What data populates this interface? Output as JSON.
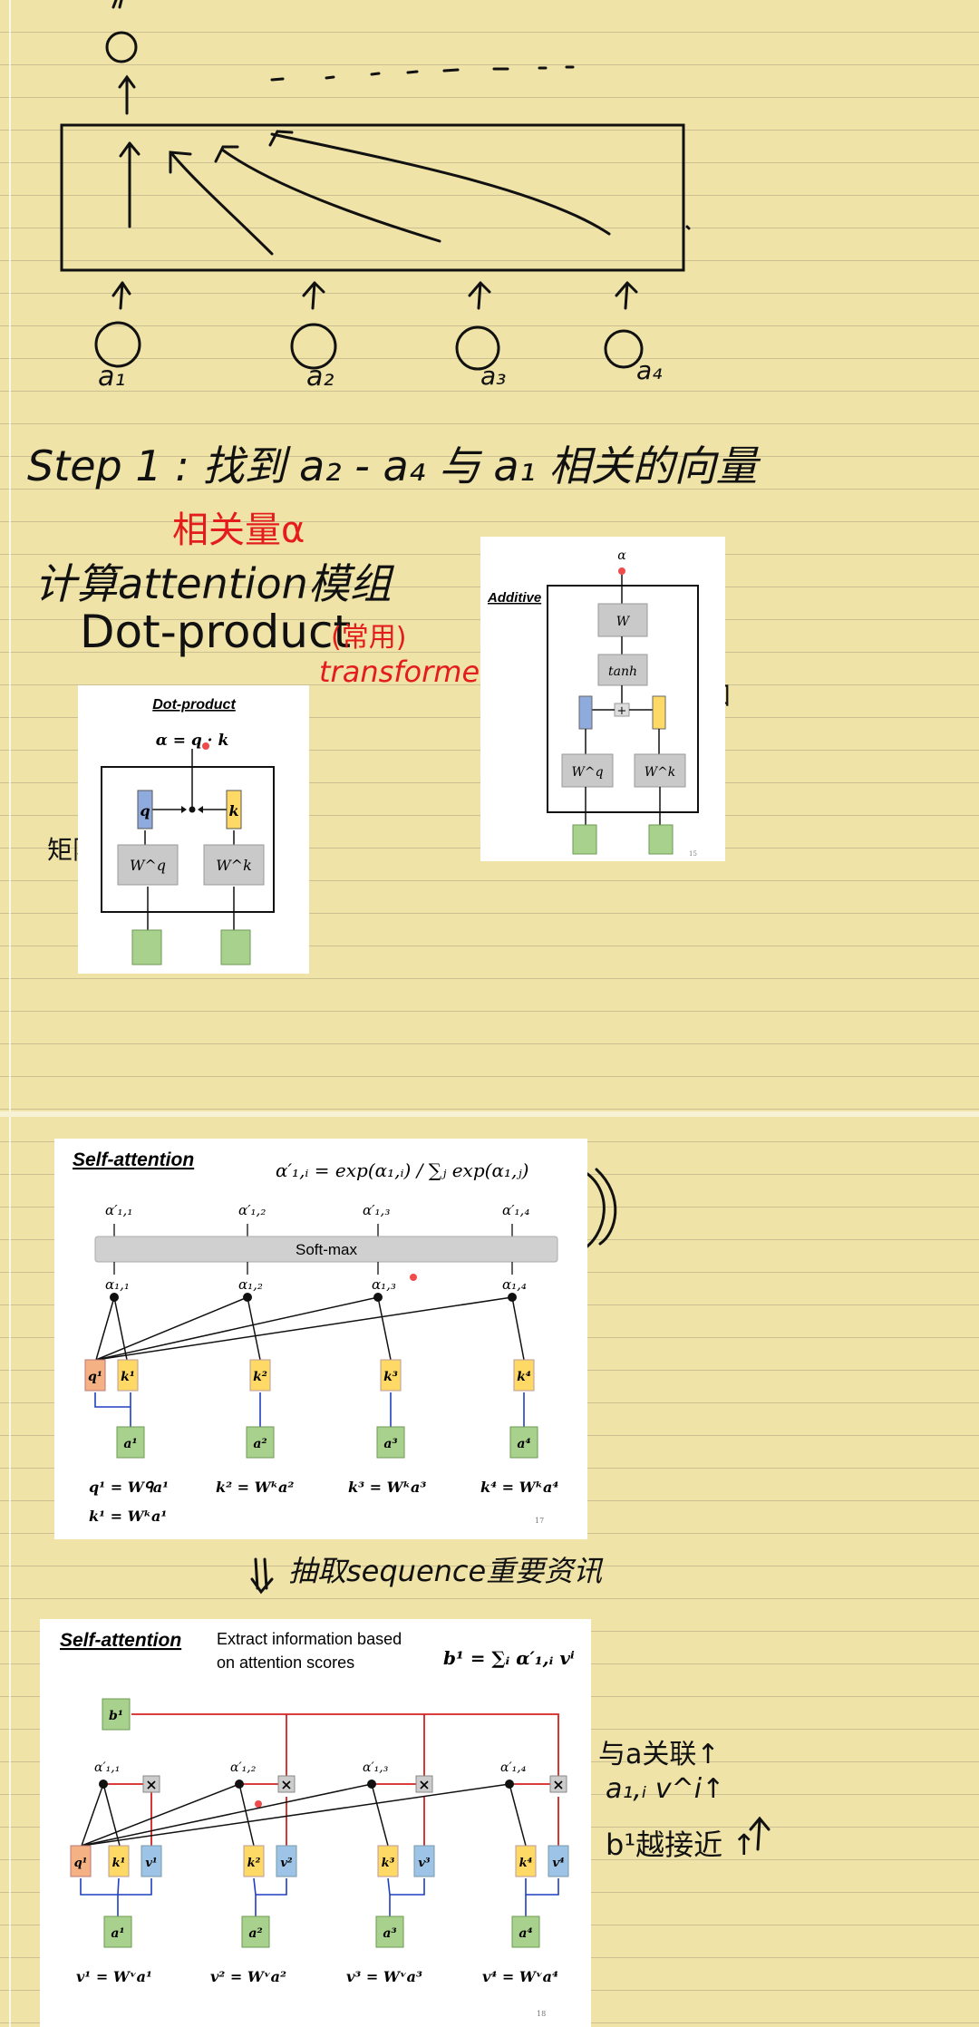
{
  "notes": {
    "step1": "Step 1 : 找到 a₂ - a₄ 与 a₁ 相关的向量",
    "relevance": "相关量α",
    "compute_module": "计算attention模组",
    "dot_product": "Dot-product",
    "common": "(常用)",
    "transformer": "transformer",
    "matrix": "矩阵",
    "add": "相加",
    "extract": "抽取sequence重要资讯",
    "right_note_1": "与a关联↑",
    "right_note_2": "a₁,ᵢ v^i↑",
    "right_note_3": "b¹越接近 ↑",
    "inputs": [
      "a₁",
      "a₂",
      "a₃",
      "a₄"
    ]
  },
  "dot_product_card": {
    "title": "Dot-product",
    "formula": "α = q · k",
    "q": "q",
    "k": "k",
    "wq": "W^q",
    "wk": "W^k"
  },
  "additive_card": {
    "title": "Additive",
    "alpha": "α",
    "w": "W",
    "tanh": "tanh",
    "plus": "+",
    "wq": "W^q",
    "wk": "W^k",
    "page_num": "15"
  },
  "softmax_slide": {
    "title": "Self-attention",
    "formula": "α′₁,ᵢ = exp(α₁,ᵢ) / ∑ⱼ exp(α₁,ⱼ)",
    "softmax_label": "Soft-max",
    "alpha_prime": [
      "α′₁,₁",
      "α′₁,₂",
      "α′₁,₃",
      "α′₁,₄"
    ],
    "alpha": [
      "α₁,₁",
      "α₁,₂",
      "α₁,₃",
      "α₁,₄"
    ],
    "q1": "q¹",
    "keys": [
      "k¹",
      "k²",
      "k³",
      "k⁴"
    ],
    "inputs": [
      "a¹",
      "a²",
      "a³",
      "a⁴"
    ],
    "equations": [
      "q¹ = Wᑫa¹",
      "k² = Wᵏa²",
      "k³ = Wᵏa³",
      "k⁴ = Wᵏa⁴"
    ],
    "equation_k1": "k¹ = Wᵏa¹",
    "page_num": "17"
  },
  "extract_slide": {
    "title": "Self-attention",
    "subtitle_line1": "Extract information based",
    "subtitle_line2": "on attention scores",
    "formula": "b¹ = ∑ᵢ α′₁,ᵢ vⁱ",
    "b1": "b¹",
    "alpha_prime": [
      "α′₁,₁",
      "α′₁,₂",
      "α′₁,₃",
      "α′₁,₄"
    ],
    "q1": "q¹",
    "keys": [
      "k¹",
      "k²",
      "k³",
      "k⁴"
    ],
    "values": [
      "v¹",
      "v²",
      "v³",
      "v⁴"
    ],
    "inputs": [
      "a¹",
      "a²",
      "a³",
      "a⁴"
    ],
    "equations": [
      "v¹ = Wᵛa¹",
      "v² = Wᵛa²",
      "v³ = Wᵛa³",
      "v⁴ = Wᵛa⁴"
    ],
    "page_num": "18"
  },
  "colors": {
    "paper": "#efe3a8",
    "q_box": "#f4b183",
    "k_box": "#ffd966",
    "v_box": "#9dc3e6",
    "a_box": "#a9d18e",
    "grey_box": "#c9c9c9",
    "red_ink": "#e41c1c",
    "blue_line": "#1f3fbf",
    "red_line": "#d62020"
  }
}
